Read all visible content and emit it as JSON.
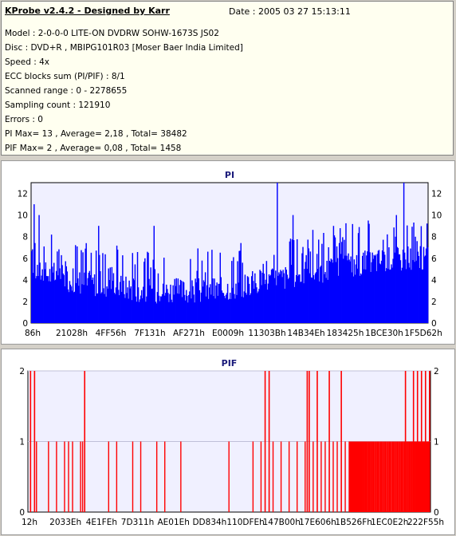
{
  "info": {
    "title": "KProbe v2.4.2 - Designed by Karr",
    "date": "Date : 2005 03 27 15:13:11",
    "lines": [
      "Model : 2-0-0-0 LITE-ON DVDRW SOHW-1673S JS02",
      "Disc : DVD+R , MBIPG101R03 [Moser Baer India Limited]",
      "Speed : 4x",
      "ECC blocks sum (PI/PIF) : 8/1",
      "Scanned range : 0 - 2278655",
      "Sampling count : 121910",
      "Errors : 0",
      "PI Max= 13 , Average= 2,18 , Total= 38482",
      "PIF Max= 2 , Average= 0,08 , Total= 1458"
    ]
  },
  "chart_data": [
    {
      "type": "bar",
      "title": "PI",
      "color": "#0000ff",
      "ylim": [
        0,
        13
      ],
      "yticks": [
        "0",
        "2",
        "4",
        "6",
        "8",
        "10",
        "12"
      ],
      "xticks": [
        "86h",
        "21028h",
        "4FF56h",
        "7F131h",
        "AF271h",
        "E0009h",
        "11303Bh",
        "14B34Eh",
        "183425h",
        "1BCE30h",
        "1F5D62h"
      ],
      "n_samples": 480,
      "peaks": [
        {
          "x_fraction": 0.006,
          "value": 11
        },
        {
          "x_fraction": 0.018,
          "value": 10
        },
        {
          "x_fraction": 0.17,
          "value": 9
        },
        {
          "x_fraction": 0.31,
          "value": 9
        },
        {
          "x_fraction": 0.62,
          "value": 13
        },
        {
          "x_fraction": 0.66,
          "value": 10
        },
        {
          "x_fraction": 0.92,
          "value": 10
        },
        {
          "x_fraction": 0.94,
          "value": 13
        }
      ],
      "baseline": [
        {
          "x_fraction": 0.0,
          "value": 5
        },
        {
          "x_fraction": 0.1,
          "value": 4
        },
        {
          "x_fraction": 0.3,
          "value": 3
        },
        {
          "x_fraction": 0.45,
          "value": 3
        },
        {
          "x_fraction": 0.6,
          "value": 4
        },
        {
          "x_fraction": 0.75,
          "value": 5
        },
        {
          "x_fraction": 0.9,
          "value": 6
        },
        {
          "x_fraction": 1.0,
          "value": 6
        }
      ]
    },
    {
      "type": "bar",
      "title": "PIF",
      "color": "#ff0000",
      "ylim": [
        0,
        2
      ],
      "yticks": [
        "0",
        "1",
        "2"
      ],
      "xticks": [
        "12h",
        "2033Eh",
        "4E1FEh",
        "7D311h",
        "AE01Eh",
        "DD834h",
        "110DFEh",
        "147B00h",
        "17E606h",
        "1B526Fh",
        "1EC0E2h",
        "222F55h"
      ],
      "spikes_2": [
        0.005,
        0.015,
        0.14,
        0.59,
        0.6,
        0.695,
        0.7,
        0.72,
        0.75,
        0.78,
        0.94,
        0.96,
        0.97,
        0.98,
        0.99,
        1.0
      ],
      "spikes_1": [
        0.02,
        0.05,
        0.07,
        0.09,
        0.1,
        0.11,
        0.13,
        0.135,
        0.2,
        0.22,
        0.26,
        0.28,
        0.32,
        0.34,
        0.38,
        0.5,
        0.56,
        0.58,
        0.61,
        0.63,
        0.65,
        0.67,
        0.69,
        0.71,
        0.73,
        0.74,
        0.76,
        0.77,
        0.79,
        0.8,
        0.81,
        0.82,
        0.83,
        0.84,
        0.85,
        0.86,
        0.87,
        0.88,
        0.89,
        0.9,
        0.91,
        0.92,
        0.93,
        0.95
      ]
    }
  ]
}
